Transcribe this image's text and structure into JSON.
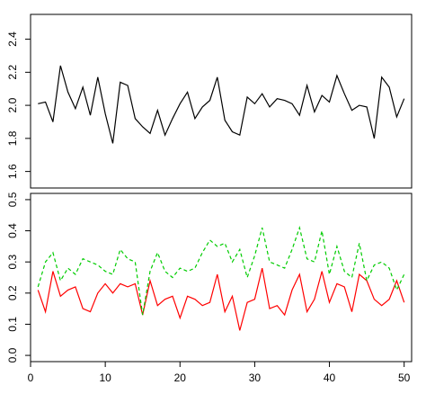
{
  "chart_data": [
    {
      "type": "line",
      "title": "",
      "xlabel": "",
      "ylabel": "",
      "xlim": [
        0,
        51
      ],
      "ylim": [
        1.5,
        2.55
      ],
      "grid": false,
      "yticks": [
        1.6,
        1.8,
        2.0,
        2.2,
        2.4
      ],
      "ytick_labels": [
        "1.6",
        "1.8",
        "2.0",
        "2.2",
        "2.4"
      ],
      "x": [
        1,
        2,
        3,
        4,
        5,
        6,
        7,
        8,
        9,
        10,
        11,
        12,
        13,
        14,
        15,
        16,
        17,
        18,
        19,
        20,
        21,
        22,
        23,
        24,
        25,
        26,
        27,
        28,
        29,
        30,
        31,
        32,
        33,
        34,
        35,
        36,
        37,
        38,
        39,
        40,
        41,
        42,
        43,
        44,
        45,
        46,
        47,
        48,
        49,
        50
      ],
      "series": [
        {
          "color": "#000000",
          "dash": "solid",
          "values": [
            2.01,
            2.02,
            1.9,
            2.24,
            2.08,
            1.98,
            2.11,
            1.94,
            2.17,
            1.95,
            1.77,
            2.14,
            2.12,
            1.92,
            1.87,
            1.83,
            1.97,
            1.82,
            1.92,
            2.01,
            2.08,
            1.92,
            1.99,
            2.03,
            2.17,
            1.91,
            1.84,
            1.82,
            2.05,
            2.01,
            2.07,
            1.99,
            2.04,
            2.03,
            2.01,
            1.94,
            2.12,
            1.96,
            2.06,
            2.02,
            2.18,
            2.07,
            1.97,
            2.0,
            1.99,
            1.8,
            2.17,
            2.11,
            1.93,
            2.04
          ]
        }
      ]
    },
    {
      "type": "line",
      "title": "",
      "xlabel": "",
      "ylabel": "",
      "xlim": [
        0,
        51
      ],
      "ylim": [
        -0.02,
        0.52
      ],
      "grid": false,
      "xticks": [
        0,
        10,
        20,
        30,
        40,
        50
      ],
      "xtick_labels": [
        "0",
        "10",
        "20",
        "30",
        "40",
        "50"
      ],
      "yticks": [
        0.0,
        0.1,
        0.2,
        0.3,
        0.4,
        0.5
      ],
      "ytick_labels": [
        "0.0",
        "0.1",
        "0.2",
        "0.3",
        "0.4",
        "0.5"
      ],
      "x": [
        1,
        2,
        3,
        4,
        5,
        6,
        7,
        8,
        9,
        10,
        11,
        12,
        13,
        14,
        15,
        16,
        17,
        18,
        19,
        20,
        21,
        22,
        23,
        24,
        25,
        26,
        27,
        28,
        29,
        30,
        31,
        32,
        33,
        34,
        35,
        36,
        37,
        38,
        39,
        40,
        41,
        42,
        43,
        44,
        45,
        46,
        47,
        48,
        49,
        50
      ],
      "series": [
        {
          "color": "#ff0000",
          "dash": "solid",
          "values": [
            0.21,
            0.14,
            0.27,
            0.19,
            0.21,
            0.22,
            0.15,
            0.14,
            0.2,
            0.23,
            0.2,
            0.23,
            0.22,
            0.23,
            0.13,
            0.24,
            0.16,
            0.18,
            0.19,
            0.12,
            0.19,
            0.18,
            0.16,
            0.17,
            0.26,
            0.14,
            0.19,
            0.08,
            0.17,
            0.18,
            0.28,
            0.15,
            0.16,
            0.13,
            0.21,
            0.26,
            0.14,
            0.18,
            0.27,
            0.17,
            0.23,
            0.22,
            0.14,
            0.26,
            0.24,
            0.18,
            0.16,
            0.18,
            0.24,
            0.17
          ]
        },
        {
          "color": "#00cc00",
          "dash": "dashed",
          "values": [
            0.22,
            0.3,
            0.33,
            0.24,
            0.28,
            0.26,
            0.31,
            0.3,
            0.29,
            0.27,
            0.26,
            0.34,
            0.31,
            0.3,
            0.13,
            0.27,
            0.33,
            0.27,
            0.25,
            0.28,
            0.27,
            0.28,
            0.33,
            0.37,
            0.35,
            0.36,
            0.3,
            0.34,
            0.25,
            0.32,
            0.41,
            0.3,
            0.29,
            0.28,
            0.34,
            0.41,
            0.31,
            0.3,
            0.4,
            0.26,
            0.35,
            0.27,
            0.25,
            0.36,
            0.24,
            0.29,
            0.3,
            0.28,
            0.21,
            0.26
          ]
        }
      ]
    }
  ]
}
